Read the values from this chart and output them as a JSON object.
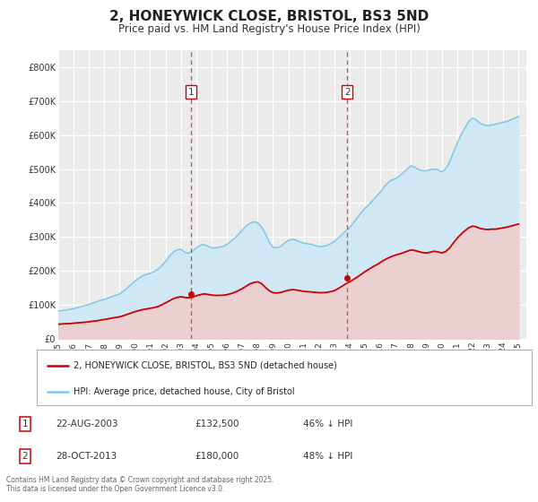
{
  "title": "2, HONEYWICK CLOSE, BRISTOL, BS3 5ND",
  "subtitle": "Price paid vs. HM Land Registry's House Price Index (HPI)",
  "title_fontsize": 11,
  "subtitle_fontsize": 8.5,
  "ylim": [
    0,
    850000
  ],
  "xlim_start": 1995.0,
  "xlim_end": 2025.5,
  "ytick_labels": [
    "£0",
    "£100K",
    "£200K",
    "£300K",
    "£400K",
    "£500K",
    "£600K",
    "£700K",
    "£800K"
  ],
  "ytick_values": [
    0,
    100000,
    200000,
    300000,
    400000,
    500000,
    600000,
    700000,
    800000
  ],
  "xtick_labels": [
    "1995",
    "1996",
    "1997",
    "1998",
    "1999",
    "2000",
    "2001",
    "2002",
    "2003",
    "2004",
    "2005",
    "2006",
    "2007",
    "2008",
    "2009",
    "2010",
    "2011",
    "2012",
    "2013",
    "2014",
    "2015",
    "2016",
    "2017",
    "2018",
    "2019",
    "2020",
    "2021",
    "2022",
    "2023",
    "2024",
    "2025"
  ],
  "background_color": "#ffffff",
  "plot_bg_color": "#ebebeb",
  "grid_color": "#ffffff",
  "hpi_color": "#7ec8e3",
  "price_color": "#cc0000",
  "hpi_fill_color": "#d0e8f5",
  "price_fill_color": "#f0cccc",
  "vline1_x": 2003.64,
  "vline2_x": 2013.83,
  "sale1_price_y": 132500,
  "sale2_price_y": 180000,
  "sale1_date": "22-AUG-2003",
  "sale1_price": "£132,500",
  "sale1_hpi": "46% ↓ HPI",
  "sale2_date": "28-OCT-2013",
  "sale2_price": "£180,000",
  "sale2_hpi": "48% ↓ HPI",
  "legend_label_price": "2, HONEYWICK CLOSE, BRISTOL, BS3 5ND (detached house)",
  "legend_label_hpi": "HPI: Average price, detached house, City of Bristol",
  "footer": "Contains HM Land Registry data © Crown copyright and database right 2025.\nThis data is licensed under the Open Government Licence v3.0.",
  "hpi_x": [
    1995.0,
    1995.25,
    1995.5,
    1995.75,
    1996.0,
    1996.25,
    1996.5,
    1996.75,
    1997.0,
    1997.25,
    1997.5,
    1997.75,
    1998.0,
    1998.25,
    1998.5,
    1998.75,
    1999.0,
    1999.25,
    1999.5,
    1999.75,
    2000.0,
    2000.25,
    2000.5,
    2000.75,
    2001.0,
    2001.25,
    2001.5,
    2001.75,
    2002.0,
    2002.25,
    2002.5,
    2002.75,
    2003.0,
    2003.25,
    2003.5,
    2003.75,
    2004.0,
    2004.25,
    2004.5,
    2004.75,
    2005.0,
    2005.25,
    2005.5,
    2005.75,
    2006.0,
    2006.25,
    2006.5,
    2006.75,
    2007.0,
    2007.25,
    2007.5,
    2007.75,
    2008.0,
    2008.25,
    2008.5,
    2008.75,
    2009.0,
    2009.25,
    2009.5,
    2009.75,
    2010.0,
    2010.25,
    2010.5,
    2010.75,
    2011.0,
    2011.25,
    2011.5,
    2011.75,
    2012.0,
    2012.25,
    2012.5,
    2012.75,
    2013.0,
    2013.25,
    2013.5,
    2013.75,
    2014.0,
    2014.25,
    2014.5,
    2014.75,
    2015.0,
    2015.25,
    2015.5,
    2015.75,
    2016.0,
    2016.25,
    2016.5,
    2016.75,
    2017.0,
    2017.25,
    2017.5,
    2017.75,
    2018.0,
    2018.25,
    2018.5,
    2018.75,
    2019.0,
    2019.25,
    2019.5,
    2019.75,
    2020.0,
    2020.25,
    2020.5,
    2020.75,
    2021.0,
    2021.25,
    2021.5,
    2021.75,
    2022.0,
    2022.25,
    2022.5,
    2022.75,
    2023.0,
    2023.25,
    2023.5,
    2023.75,
    2024.0,
    2024.25,
    2024.5,
    2024.75,
    2025.0
  ],
  "hpi_y": [
    82000,
    83000,
    85000,
    87000,
    89000,
    92000,
    95000,
    98000,
    101000,
    105000,
    109000,
    113000,
    116000,
    120000,
    124000,
    128000,
    132000,
    140000,
    150000,
    160000,
    170000,
    178000,
    185000,
    190000,
    193000,
    198000,
    205000,
    215000,
    228000,
    243000,
    255000,
    262000,
    264000,
    255000,
    252000,
    258000,
    268000,
    275000,
    278000,
    273000,
    268000,
    268000,
    270000,
    272000,
    278000,
    287000,
    296000,
    308000,
    320000,
    332000,
    340000,
    345000,
    342000,
    330000,
    310000,
    285000,
    270000,
    268000,
    272000,
    282000,
    290000,
    293000,
    291000,
    286000,
    282000,
    280000,
    278000,
    275000,
    272000,
    272000,
    275000,
    280000,
    287000,
    297000,
    308000,
    318000,
    328000,
    342000,
    357000,
    372000,
    385000,
    395000,
    408000,
    420000,
    432000,
    448000,
    460000,
    468000,
    472000,
    480000,
    490000,
    500000,
    510000,
    505000,
    498000,
    495000,
    495000,
    498000,
    500000,
    498000,
    492000,
    500000,
    520000,
    548000,
    575000,
    600000,
    620000,
    640000,
    650000,
    645000,
    635000,
    630000,
    628000,
    630000,
    632000,
    635000,
    638000,
    640000,
    645000,
    650000,
    655000
  ],
  "price_y": [
    43000,
    44000,
    44500,
    45000,
    46000,
    47000,
    48000,
    49000,
    50000,
    52000,
    53000,
    55000,
    57000,
    59000,
    61000,
    63000,
    65000,
    68000,
    72000,
    76000,
    80000,
    83000,
    86000,
    88000,
    90000,
    92000,
    95000,
    100000,
    106000,
    112000,
    118000,
    122000,
    124000,
    122000,
    121000,
    122000,
    127000,
    130000,
    132500,
    131000,
    129000,
    128000,
    128000,
    128500,
    130000,
    133000,
    137000,
    142000,
    148000,
    155000,
    162000,
    166000,
    168000,
    163000,
    152000,
    142000,
    136000,
    135000,
    136500,
    140000,
    143000,
    145000,
    144000,
    142000,
    140000,
    139000,
    138000,
    137000,
    136000,
    136000,
    137000,
    139000,
    142000,
    148000,
    155000,
    162000,
    168000,
    175000,
    182000,
    190000,
    198000,
    205000,
    212000,
    218000,
    225000,
    232000,
    238000,
    243000,
    247000,
    250000,
    254000,
    258000,
    262000,
    260000,
    257000,
    254000,
    253000,
    255000,
    258000,
    256000,
    253000,
    257000,
    267000,
    282000,
    296000,
    308000,
    318000,
    327000,
    332000,
    330000,
    325000,
    323000,
    322000,
    323000,
    323000,
    325000,
    327000,
    329000,
    332000,
    335000,
    338000
  ]
}
